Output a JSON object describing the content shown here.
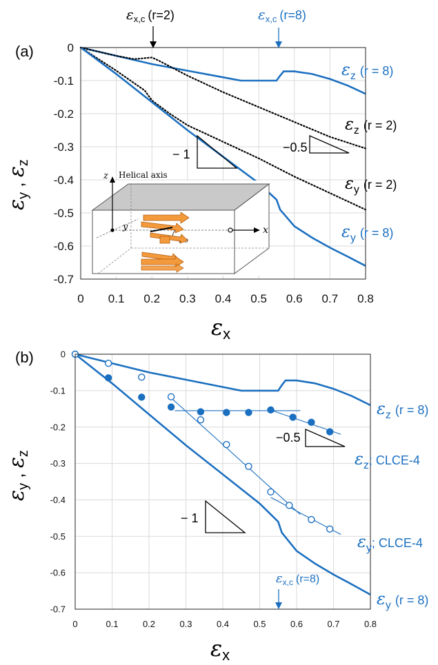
{
  "colors": {
    "blue": "#1b6fc0",
    "black": "#000000",
    "orange": "#f39a3c"
  },
  "symbols": {
    "eps": "ε"
  },
  "panel_a": {
    "panel_label": "(a)",
    "ylabel_y": "y",
    "ylabel_sep": " , ",
    "ylabel_z": "z",
    "xlabel_sub": "x",
    "annot_xc_r2_sub": "x,c",
    "annot_xc_r2_paren": "(r=2)",
    "annot_xc_r8_sub": "x,c",
    "annot_xc_r8_paren": "(r=8)",
    "curve_labels": {
      "ez_r8": {
        "sub": "z",
        "text": "(r = 8)"
      },
      "ez_r2": {
        "sub": "z",
        "text": "(r = 2)"
      },
      "ey_r2": {
        "sub": "y",
        "text": "(r = 2)"
      },
      "ey_r8": {
        "sub": "y",
        "text": "(r = 8)"
      }
    },
    "slope_labels": {
      "minus1": "− 1",
      "minus05": "−0.5"
    },
    "inset": {
      "z_axis": "z",
      "helical_axis": "Helical axis",
      "y_axis": "y",
      "x_axis": "x",
      "phi": "Φ₀"
    }
  },
  "panel_b": {
    "panel_label": "(b)",
    "ylabel_y": "y",
    "ylabel_sep": " , ",
    "ylabel_z": "z",
    "xlabel_sub": "x",
    "annot_xc_r8_sub": "x,c",
    "annot_xc_r8_paren": "(r=8)",
    "curve_labels": {
      "ez_r8": {
        "sub": "z",
        "text": "(r = 8)"
      },
      "ez_clce": {
        "sub": "z",
        "text": "; CLCE-4"
      },
      "ey_clce": {
        "sub": "y",
        "text": "; CLCE-4"
      },
      "ey_r8": {
        "sub": "y",
        "text": "(r = 8)"
      }
    },
    "slope_labels": {
      "minus1": "− 1",
      "minus05": "−0.5"
    }
  },
  "chart_data": [
    {
      "type": "line",
      "panel": "(a)",
      "xlim": [
        0,
        0.8
      ],
      "ylim": [
        -0.7,
        0
      ],
      "xticks": [
        "0",
        "0.1",
        "0.2",
        "0.3",
        "0.4",
        "0.5",
        "0.6",
        "0.7",
        "0.8"
      ],
      "yticks": [
        "0",
        "-0.1",
        "-0.2",
        "-0.3",
        "-0.4",
        "-0.5",
        "-0.6",
        "-0.7"
      ],
      "grid": true,
      "series": [
        {
          "name": "εz (r = 8)",
          "color": "#1b6fc0",
          "style": "solid",
          "x": [
            0,
            0.1,
            0.2,
            0.3,
            0.4,
            0.45,
            0.5,
            0.55,
            0.56,
            0.57,
            0.6,
            0.65,
            0.7,
            0.75,
            0.8
          ],
          "y": [
            0,
            -0.025,
            -0.05,
            -0.07,
            -0.09,
            -0.1,
            -0.1,
            -0.1,
            -0.085,
            -0.072,
            -0.072,
            -0.08,
            -0.095,
            -0.115,
            -0.14
          ]
        },
        {
          "name": "εz (r = 2)",
          "color": "#000000",
          "style": "dotted",
          "x": [
            0,
            0.1,
            0.15,
            0.2,
            0.22,
            0.3,
            0.4,
            0.5,
            0.6,
            0.7,
            0.8
          ],
          "y": [
            0,
            -0.025,
            -0.035,
            -0.03,
            -0.04,
            -0.085,
            -0.135,
            -0.18,
            -0.225,
            -0.27,
            -0.305
          ]
        },
        {
          "name": "εy (r = 2)",
          "color": "#000000",
          "style": "dotted",
          "x": [
            0,
            0.1,
            0.18,
            0.2,
            0.25,
            0.3,
            0.4,
            0.5,
            0.6,
            0.7,
            0.8
          ],
          "y": [
            0,
            -0.07,
            -0.13,
            -0.16,
            -0.2,
            -0.235,
            -0.285,
            -0.335,
            -0.39,
            -0.44,
            -0.49
          ]
        },
        {
          "name": "εy (r = 8)",
          "color": "#1b6fc0",
          "style": "solid",
          "x": [
            0,
            0.1,
            0.2,
            0.3,
            0.4,
            0.5,
            0.55,
            0.56,
            0.58,
            0.6,
            0.65,
            0.7,
            0.75,
            0.8
          ],
          "y": [
            0,
            -0.08,
            -0.165,
            -0.25,
            -0.33,
            -0.41,
            -0.46,
            -0.49,
            -0.515,
            -0.54,
            -0.575,
            -0.605,
            -0.632,
            -0.66
          ]
        }
      ],
      "annotations": [
        {
          "text": "εx,c (r=2)",
          "x": 0.21,
          "color": "#000000"
        },
        {
          "text": "εx,c (r=8)",
          "x": 0.56,
          "color": "#1b6fc0"
        }
      ],
      "slope_triangles": [
        {
          "label": "− 1",
          "slope": -1
        },
        {
          "label": "−0.5",
          "slope": -0.5
        }
      ]
    },
    {
      "type": "line",
      "panel": "(b)",
      "xlim": [
        0,
        0.8
      ],
      "ylim": [
        -0.7,
        0
      ],
      "xticks": [
        "0",
        "0.1",
        "0.2",
        "0.3",
        "0.4",
        "0.5",
        "0.6",
        "0.7",
        "0.8"
      ],
      "yticks": [
        "0",
        "-0.1",
        "-0.2",
        "-0.3",
        "-0.4",
        "-0.5",
        "-0.6",
        "-0.7"
      ],
      "grid": true,
      "series": [
        {
          "name": "εz (r = 8)",
          "color": "#1b6fc0",
          "style": "solid",
          "x": [
            0,
            0.1,
            0.2,
            0.3,
            0.4,
            0.45,
            0.5,
            0.55,
            0.56,
            0.57,
            0.6,
            0.65,
            0.7,
            0.75,
            0.8
          ],
          "y": [
            0,
            -0.025,
            -0.05,
            -0.07,
            -0.09,
            -0.1,
            -0.1,
            -0.1,
            -0.085,
            -0.072,
            -0.072,
            -0.08,
            -0.095,
            -0.115,
            -0.14
          ]
        },
        {
          "name": "εy (r = 8)",
          "color": "#1b6fc0",
          "style": "solid",
          "x": [
            0,
            0.1,
            0.2,
            0.3,
            0.4,
            0.5,
            0.55,
            0.56,
            0.58,
            0.6,
            0.65,
            0.7,
            0.75,
            0.8
          ],
          "y": [
            0,
            -0.08,
            -0.165,
            -0.25,
            -0.33,
            -0.41,
            -0.46,
            -0.49,
            -0.515,
            -0.54,
            -0.575,
            -0.605,
            -0.632,
            -0.66
          ]
        },
        {
          "name": "εz; CLCE-4",
          "color": "#1b6fc0",
          "marker": "filled",
          "x": [
            0,
            0.09,
            0.18,
            0.26,
            0.34,
            0.41,
            0.47,
            0.53,
            0.59,
            0.64,
            0.69
          ],
          "y": [
            0,
            -0.065,
            -0.118,
            -0.145,
            -0.158,
            -0.16,
            -0.16,
            -0.153,
            -0.173,
            -0.187,
            -0.213
          ]
        },
        {
          "name": "εy; CLCE-4",
          "color": "#1b6fc0",
          "marker": "open",
          "x": [
            0,
            0.09,
            0.18,
            0.26,
            0.34,
            0.41,
            0.47,
            0.53,
            0.58,
            0.64,
            0.69
          ],
          "y": [
            0,
            -0.025,
            -0.063,
            -0.117,
            -0.18,
            -0.248,
            -0.308,
            -0.378,
            -0.415,
            -0.454,
            -0.48
          ]
        }
      ],
      "fit_lines": [
        {
          "x": [
            0.26,
            0.61
          ],
          "y": [
            -0.12,
            -0.44
          ]
        },
        {
          "x": [
            0.27,
            0.61
          ],
          "y": [
            -0.155,
            -0.155
          ]
        },
        {
          "x": [
            0.52,
            0.72
          ],
          "y": [
            -0.15,
            -0.22
          ]
        },
        {
          "x": [
            0.53,
            0.72
          ],
          "y": [
            -0.393,
            -0.495
          ]
        }
      ],
      "annotations": [
        {
          "text": "εx,c (r=8)",
          "x": 0.55,
          "color": "#1b6fc0"
        }
      ],
      "slope_triangles": [
        {
          "label": "− 1",
          "slope": -1
        },
        {
          "label": "−0.5",
          "slope": -0.5
        }
      ]
    }
  ]
}
